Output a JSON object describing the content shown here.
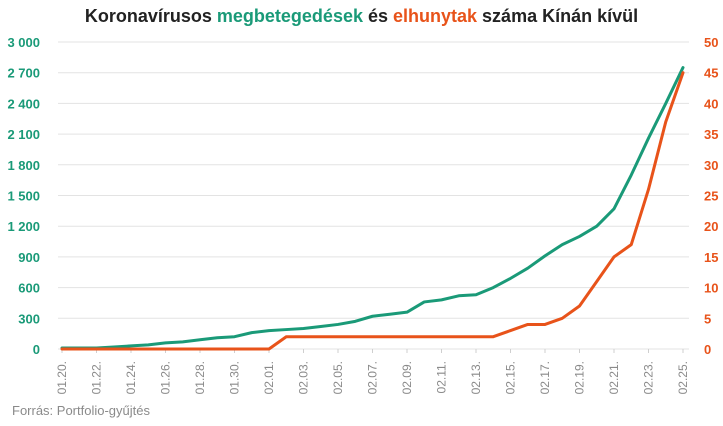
{
  "title": {
    "part1": "Koronavírusos ",
    "part2": "megbetegedések",
    "part3": " és ",
    "part4": "elhunytak",
    "part5": " száma Kínán kívül"
  },
  "source": "Forrás: Portfolio-gyűjtés",
  "colors": {
    "cases": "#1a9a78",
    "deaths": "#e8531a",
    "grid": "#e3e3e3",
    "axis_text": "#8a8a8a"
  },
  "chart_data": {
    "type": "line",
    "x": [
      "01.20.",
      "01.21.",
      "01.22.",
      "01.23.",
      "01.24.",
      "01.25.",
      "01.26.",
      "01.27.",
      "01.28.",
      "01.29.",
      "01.30.",
      "01.31.",
      "02.01.",
      "02.02.",
      "02.03.",
      "02.04.",
      "02.05.",
      "02.06.",
      "02.07.",
      "02.08.",
      "02.09.",
      "02.10.",
      "02.11.",
      "02.12.",
      "02.13.",
      "02.14.",
      "02.15.",
      "02.16.",
      "02.17.",
      "02.18.",
      "02.19.",
      "02.20.",
      "02.21.",
      "02.22.",
      "02.23.",
      "02.24.",
      "02.25."
    ],
    "x_tick_labels": [
      "01.20.",
      "01.22.",
      "01.24.",
      "01.26.",
      "01.28.",
      "01.30.",
      "02.01.",
      "02.03.",
      "02.05.",
      "02.07.",
      "02.09.",
      "02.11.",
      "02.13.",
      "02.15.",
      "02.17.",
      "02.19.",
      "02.21.",
      "02.23.",
      "02.25."
    ],
    "series": [
      {
        "name": "megbetegedések",
        "axis": "left",
        "values": [
          10,
          10,
          10,
          20,
          30,
          40,
          60,
          70,
          90,
          110,
          120,
          160,
          180,
          190,
          200,
          220,
          240,
          270,
          320,
          340,
          360,
          460,
          480,
          520,
          530,
          600,
          690,
          790,
          910,
          1020,
          1100,
          1200,
          1370,
          1700,
          2060,
          2400,
          2750
        ]
      },
      {
        "name": "elhunytak",
        "axis": "right",
        "values": [
          0,
          0,
          0,
          0,
          0,
          0,
          0,
          0,
          0,
          0,
          0,
          0,
          0,
          2,
          2,
          2,
          2,
          2,
          2,
          2,
          2,
          2,
          2,
          2,
          2,
          2,
          3,
          4,
          4,
          5,
          7,
          11,
          15,
          17,
          26,
          37,
          45
        ]
      }
    ],
    "y_left": {
      "min": 0,
      "max": 3000,
      "ticks": [
        0,
        300,
        600,
        900,
        1200,
        1500,
        1800,
        2100,
        2400,
        2700,
        3000
      ],
      "tick_labels": [
        "0",
        "300",
        "600",
        "900",
        "1 200",
        "1 500",
        "1 800",
        "2 100",
        "2 400",
        "2 700",
        "3 000"
      ]
    },
    "y_right": {
      "min": 0,
      "max": 50,
      "ticks": [
        0,
        5,
        10,
        15,
        20,
        25,
        30,
        35,
        40,
        45,
        50
      ],
      "tick_labels": [
        "0",
        "5",
        "10",
        "15",
        "20",
        "25",
        "30",
        "35",
        "40",
        "45",
        "50"
      ]
    },
    "grid": true
  }
}
